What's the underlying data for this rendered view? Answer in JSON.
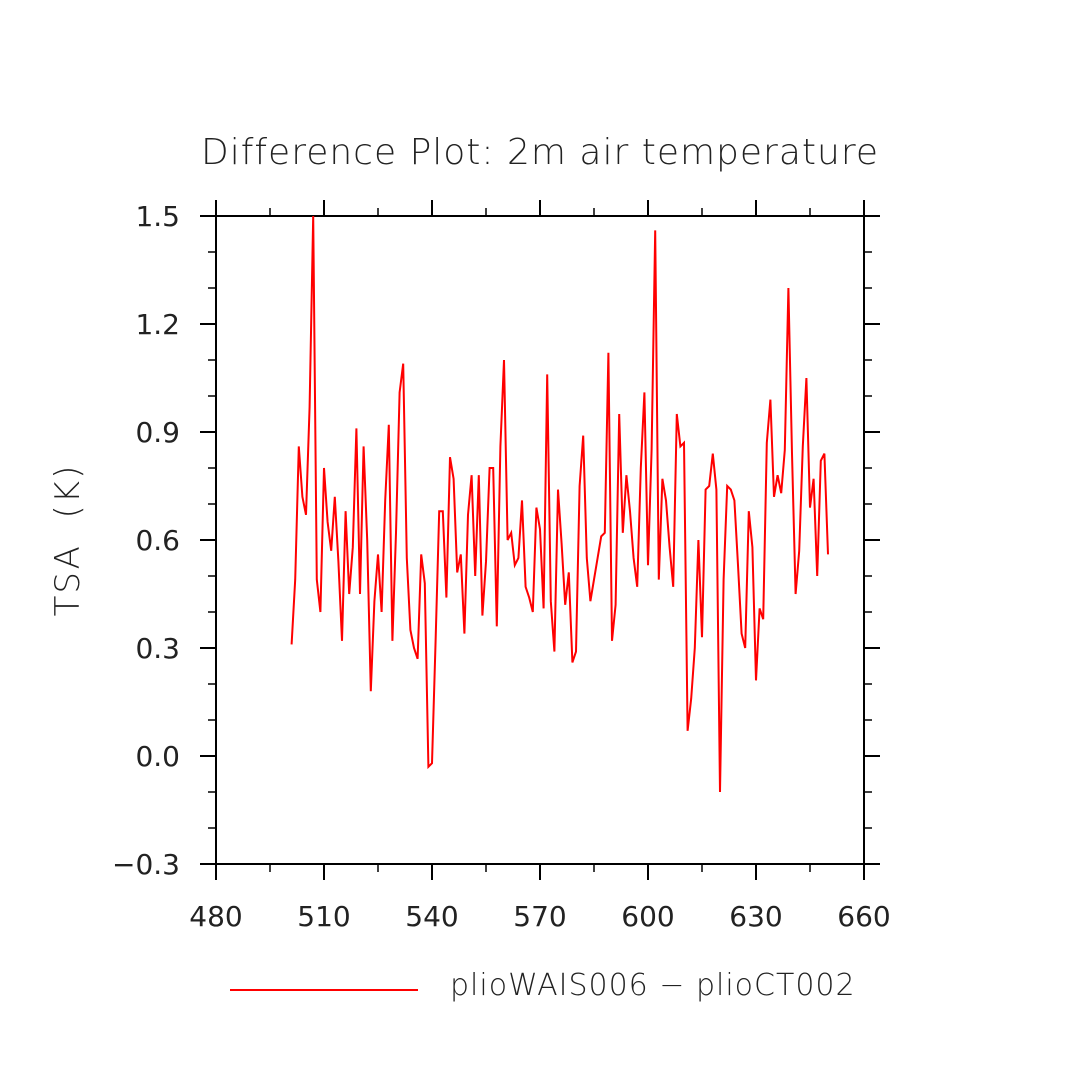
{
  "chart_data": {
    "type": "line",
    "title": "Difference Plot: 2m air temperature",
    "ylabel": "TSA  (K)",
    "xlabel": "",
    "xlim": [
      480,
      660
    ],
    "ylim": [
      -0.3,
      1.5
    ],
    "xticks": [
      "480",
      "510",
      "540",
      "570",
      "600",
      "630",
      "660"
    ],
    "yticks": [
      "−0.3",
      "0.0",
      "0.3",
      "0.6",
      "0.9",
      "1.2",
      "1.5"
    ],
    "grid": false,
    "legend_position": "bottom",
    "series": [
      {
        "name": "plioWAIS006 − plioCT002",
        "color": "#ff0000",
        "x": [
          501,
          502,
          503,
          504,
          505,
          506,
          507,
          508,
          509,
          510,
          511,
          512,
          513,
          514,
          515,
          516,
          517,
          518,
          519,
          520,
          521,
          522,
          523,
          524,
          525,
          526,
          527,
          528,
          529,
          530,
          531,
          532,
          533,
          534,
          535,
          536,
          537,
          538,
          539,
          540,
          541,
          542,
          543,
          544,
          545,
          546,
          547,
          548,
          549,
          550,
          551,
          552,
          553,
          554,
          555,
          556,
          557,
          558,
          559,
          560,
          561,
          562,
          563,
          564,
          565,
          566,
          567,
          568,
          569,
          570,
          571,
          572,
          573,
          574,
          575,
          576,
          577,
          578,
          579,
          580,
          581,
          582,
          583,
          584,
          585,
          586,
          587,
          588,
          589,
          590,
          591,
          592,
          593,
          594,
          595,
          596,
          597,
          598,
          599,
          600,
          601,
          602,
          603,
          604,
          605,
          606,
          607,
          608,
          609,
          610,
          611,
          612,
          613,
          614,
          615,
          616,
          617,
          618,
          619,
          620,
          621,
          622,
          623,
          624,
          625,
          626,
          627,
          628,
          629,
          630,
          631,
          632,
          633,
          634,
          635,
          636,
          637,
          638,
          639,
          640,
          641,
          642,
          643,
          644,
          645,
          646,
          647,
          648,
          649,
          650
        ],
        "values": [
          0.31,
          0.49,
          0.86,
          0.72,
          0.67,
          0.97,
          1.5,
          0.49,
          0.4,
          0.8,
          0.65,
          0.57,
          0.72,
          0.54,
          0.32,
          0.68,
          0.45,
          0.58,
          0.91,
          0.45,
          0.86,
          0.6,
          0.18,
          0.43,
          0.56,
          0.4,
          0.71,
          0.92,
          0.32,
          0.62,
          1.01,
          1.09,
          0.55,
          0.35,
          0.3,
          0.27,
          0.56,
          0.48,
          -0.03,
          -0.02,
          0.32,
          0.68,
          0.68,
          0.44,
          0.83,
          0.77,
          0.51,
          0.56,
          0.34,
          0.67,
          0.78,
          0.5,
          0.78,
          0.39,
          0.54,
          0.8,
          0.8,
          0.36,
          0.86,
          1.1,
          0.6,
          0.62,
          0.53,
          0.55,
          0.71,
          0.47,
          0.44,
          0.4,
          0.69,
          0.63,
          0.41,
          1.06,
          0.43,
          0.29,
          0.74,
          0.59,
          0.42,
          0.51,
          0.26,
          0.29,
          0.75,
          0.89,
          0.55,
          0.43,
          0.49,
          0.55,
          0.61,
          0.62,
          1.12,
          0.32,
          0.42,
          0.95,
          0.62,
          0.78,
          0.68,
          0.55,
          0.47,
          0.8,
          1.01,
          0.53,
          0.85,
          1.46,
          0.49,
          0.77,
          0.71,
          0.58,
          0.47,
          0.95,
          0.86,
          0.87,
          0.07,
          0.16,
          0.3,
          0.6,
          0.33,
          0.74,
          0.75,
          0.84,
          0.74,
          -0.1,
          0.49,
          0.75,
          0.74,
          0.71,
          0.53,
          0.34,
          0.3,
          0.68,
          0.58,
          0.21,
          0.41,
          0.38,
          0.87,
          0.99,
          0.72,
          0.78,
          0.73,
          0.85,
          1.3,
          0.84,
          0.45,
          0.57,
          0.86,
          1.05,
          0.69,
          0.77,
          0.5,
          0.82,
          0.84,
          0.56
        ]
      }
    ]
  }
}
